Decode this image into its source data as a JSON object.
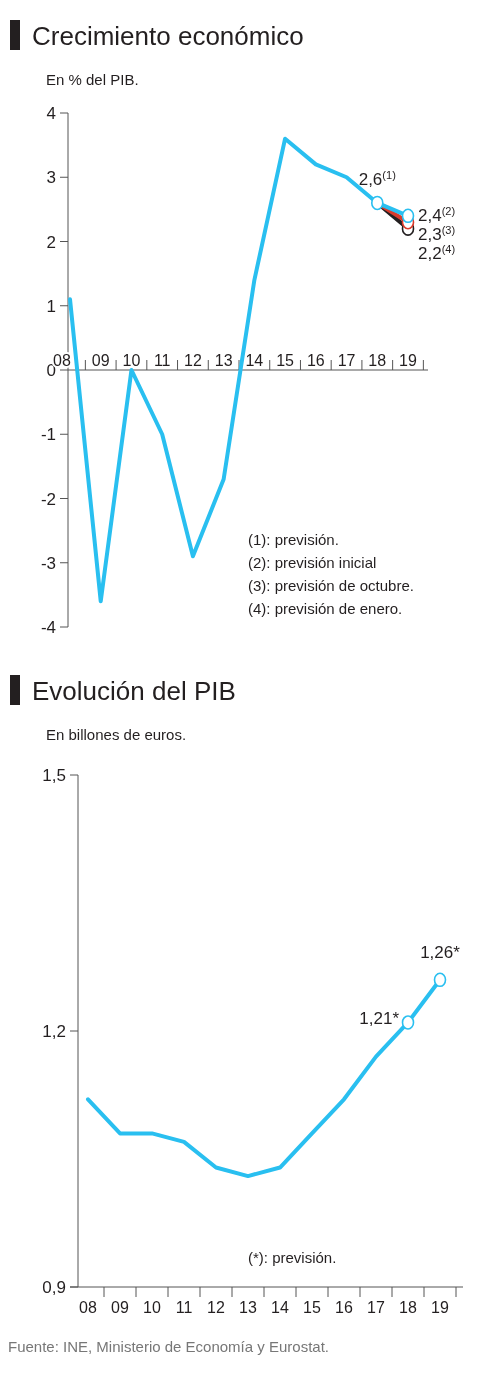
{
  "chart_data": [
    {
      "type": "line",
      "title": "Crecimiento económico",
      "subtitle": "En % del PIB.",
      "categories": [
        "08",
        "09",
        "10",
        "11",
        "12",
        "13",
        "14",
        "15",
        "16",
        "17",
        "18",
        "19"
      ],
      "ylim": [
        -4,
        4
      ],
      "yticks": [
        -4,
        -3,
        -2,
        -1,
        0,
        1,
        2,
        3,
        4
      ],
      "series": [
        {
          "color": "#29bff0",
          "values": [
            1.1,
            -3.6,
            0.0,
            -1.0,
            -2.9,
            -1.7,
            1.4,
            3.6,
            3.2,
            3.0,
            2.6,
            null
          ]
        },
        {
          "color": "#231f20",
          "marker": "circle",
          "values": [
            null,
            null,
            null,
            null,
            null,
            null,
            null,
            null,
            null,
            null,
            2.6,
            2.2
          ],
          "value_labels": [
            null,
            null,
            null,
            null,
            null,
            null,
            null,
            null,
            null,
            null,
            null,
            "2,2$^{(4)}$"
          ]
        },
        {
          "color": "#d93a2b",
          "marker": "circle",
          "values": [
            null,
            null,
            null,
            null,
            null,
            null,
            null,
            null,
            null,
            null,
            2.6,
            2.3
          ],
          "value_labels": [
            null,
            null,
            null,
            null,
            null,
            null,
            null,
            null,
            null,
            null,
            null,
            "2,3$^{(3)}$"
          ]
        },
        {
          "color": "#29bff0",
          "marker": "circle",
          "values": [
            null,
            null,
            null,
            null,
            null,
            null,
            null,
            null,
            null,
            null,
            2.6,
            2.4
          ],
          "value_labels": [
            null,
            null,
            null,
            null,
            null,
            null,
            null,
            null,
            null,
            null,
            "2,6$^{(1)}$",
            "2,4$^{(2)}$"
          ]
        }
      ],
      "annotations": [
        "(1): previsión.",
        "(2): previsión inicial",
        "(3): previsión de octubre.",
        "(4): previsión de enero."
      ]
    },
    {
      "type": "line",
      "title": "Evolución del PIB",
      "subtitle": "En billones de euros.",
      "categories": [
        "08",
        "09",
        "10",
        "11",
        "12",
        "13",
        "14",
        "15",
        "16",
        "17",
        "18",
        "19"
      ],
      "ylim": [
        0.9,
        1.5
      ],
      "yticks": [
        {
          "value": 0.9,
          "label": "0,9"
        },
        {
          "value": 1.2,
          "label": "1,2"
        },
        {
          "value": 1.5,
          "label": "1,5"
        }
      ],
      "series": [
        {
          "color": "#29bff0",
          "values": [
            1.12,
            1.08,
            1.08,
            1.07,
            1.04,
            1.03,
            1.04,
            1.08,
            1.12,
            1.17,
            1.21,
            null
          ]
        },
        {
          "color": "#29bff0",
          "marker": "circle",
          "values": [
            null,
            null,
            null,
            null,
            null,
            null,
            null,
            null,
            null,
            null,
            1.21,
            1.26
          ],
          "value_labels": [
            null,
            null,
            null,
            null,
            null,
            null,
            null,
            null,
            null,
            null,
            "1,21*",
            "1,26*"
          ]
        }
      ],
      "annotations": [
        "(*): previsión.",
        "Fuente: INE, Ministerio de Economía y Eurostat."
      ]
    }
  ]
}
